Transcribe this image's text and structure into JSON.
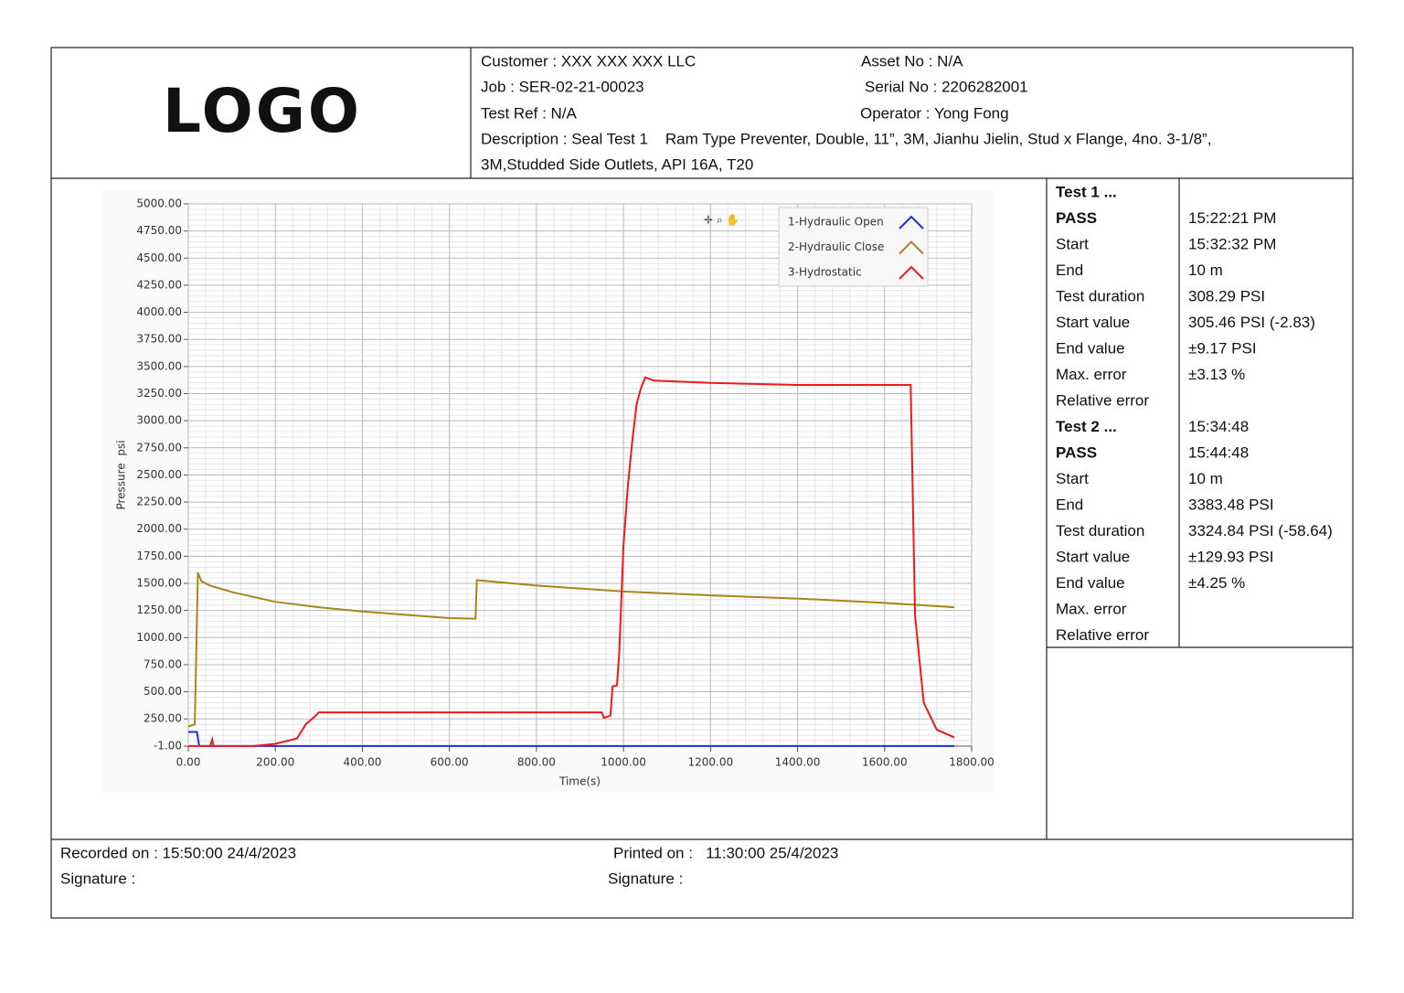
{
  "header": {
    "logo": "LOGO",
    "customer": "Customer : XXX XXX XXX LLC",
    "asset": "Asset No : N/A",
    "job": "Job : SER-02-21-00023",
    "serial": "Serial No : 2206282001",
    "test_ref": "Test Ref : N/A",
    "operator": "Operator : Yong Fong",
    "description_1": "Description : Seal Test 1    Ram Type Preventer, Double, 11”, 3M, Jianhu Jielin, Stud x Flange, 4no. 3-1/8”,",
    "description_2": "3M,Studded Side Outlets, API 16A, T20"
  },
  "chart_data": {
    "type": "line",
    "y_label": "Pressure  psi",
    "x_label": "Time(s)",
    "grid": true,
    "legend": "top-right",
    "xlim": [
      0,
      1800
    ],
    "ylim": [
      -1,
      5000
    ],
    "xticks": [
      {
        "value": 0,
        "label": "0.00"
      },
      {
        "value": 200,
        "label": "200.00"
      },
      {
        "value": 400,
        "label": "400.00"
      },
      {
        "value": 600,
        "label": "600.00"
      },
      {
        "value": 800,
        "label": "800.00"
      },
      {
        "value": 1000,
        "label": "1000.00"
      },
      {
        "value": 1200,
        "label": "1200.00"
      },
      {
        "value": 1400,
        "label": "1400.00"
      },
      {
        "value": 1600,
        "label": "1600.00"
      },
      {
        "value": 1800,
        "label": "1800.00"
      }
    ],
    "yticks": [
      {
        "value": -1,
        "label": "-1.00"
      },
      {
        "value": 250,
        "label": "250.00"
      },
      {
        "value": 500,
        "label": "500.00"
      },
      {
        "value": 750,
        "label": "750.00"
      },
      {
        "value": 1000,
        "label": "1000.00"
      },
      {
        "value": 1250,
        "label": "1250.00"
      },
      {
        "value": 1500,
        "label": "1500.00"
      },
      {
        "value": 1750,
        "label": "1750.00"
      },
      {
        "value": 2000,
        "label": "2000.00"
      },
      {
        "value": 2250,
        "label": "2250.00"
      },
      {
        "value": 2500,
        "label": "2500.00"
      },
      {
        "value": 2750,
        "label": "2750.00"
      },
      {
        "value": 3000,
        "label": "3000.00"
      },
      {
        "value": 3250,
        "label": "3250.00"
      },
      {
        "value": 3500,
        "label": "3500.00"
      },
      {
        "value": 3750,
        "label": "3750.00"
      },
      {
        "value": 4000,
        "label": "4000.00"
      },
      {
        "value": 4250,
        "label": "4250.00"
      },
      {
        "value": 4500,
        "label": "4500.00"
      },
      {
        "value": 4750,
        "label": "4750.00"
      },
      {
        "value": 5000,
        "label": "5000.00"
      }
    ],
    "series": [
      {
        "name": "1-Hydraulic Open",
        "color": "#1f2fe0",
        "x": [
          0,
          20,
          25,
          1760
        ],
        "values": [
          130,
          130,
          0,
          0
        ]
      },
      {
        "name": "2-Hydraulic Close",
        "color": "#a8861a",
        "x": [
          0,
          15,
          22,
          30,
          50,
          100,
          200,
          300,
          400,
          500,
          600,
          660,
          663,
          800,
          1000,
          1200,
          1400,
          1600,
          1680,
          1760
        ],
        "values": [
          180,
          200,
          1600,
          1520,
          1480,
          1420,
          1330,
          1280,
          1240,
          1210,
          1180,
          1175,
          1530,
          1480,
          1425,
          1390,
          1360,
          1320,
          1300,
          1280
        ]
      },
      {
        "name": "3-Hydrostatic",
        "color": "#f01818",
        "x": [
          0,
          50,
          55,
          58,
          150,
          200,
          250,
          270,
          290,
          300,
          950,
          955,
          970,
          975,
          985,
          990,
          1000,
          1010,
          1020,
          1030,
          1040,
          1050,
          1070,
          1200,
          1400,
          1660,
          1670,
          1690,
          1720,
          1760
        ],
        "values": [
          0,
          0,
          60,
          0,
          0,
          20,
          70,
          200,
          270,
          310,
          310,
          260,
          280,
          550,
          560,
          850,
          1850,
          2400,
          2800,
          3150,
          3300,
          3400,
          3370,
          3350,
          3330,
          3330,
          1200,
          400,
          150,
          80
        ]
      }
    ]
  },
  "results": {
    "rows": [
      {
        "label": "Test 1 ...",
        "bold": true
      },
      {
        "label": "PASS",
        "bold": true,
        "value": "15:22:21 PM"
      },
      {
        "label": "Start",
        "value": "15:32:32 PM"
      },
      {
        "label": "End",
        "value": "10 m"
      },
      {
        "label": "Test duration",
        "value": "308.29 PSI"
      },
      {
        "label": "Start value",
        "value": "305.46 PSI (-2.83)"
      },
      {
        "label": "End value",
        "value": "±9.17 PSI"
      },
      {
        "label": "Max. error",
        "value": "±3.13 %"
      },
      {
        "label": "Relative error"
      },
      {
        "label": "Test 2 ...",
        "bold": true,
        "value": "15:34:48"
      },
      {
        "label": "PASS",
        "bold": true,
        "value": "15:44:48"
      },
      {
        "label": "Start",
        "value": "10 m"
      },
      {
        "label": "End",
        "value": "3383.48 PSI"
      },
      {
        "label": "Test duration",
        "value": "3324.84 PSI (-58.64)"
      },
      {
        "label": "Start value",
        "value": "±129.93 PSI"
      },
      {
        "label": "End value",
        "value": "±4.25 %"
      },
      {
        "label": "Max. error"
      },
      {
        "label": "Relative error"
      }
    ]
  },
  "footer": {
    "recorded": "Recorded on : 15:50:00 24/4/2023",
    "printed": "Printed on :   11:30:00 25/4/2023",
    "signature_left": "Signature :",
    "signature_right": "Signature :"
  }
}
